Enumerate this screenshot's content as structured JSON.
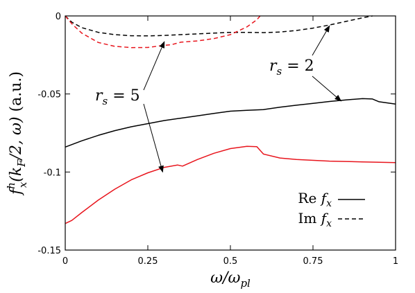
{
  "chart_data": {
    "type": "line",
    "title": "",
    "xlabel": "ω/ω_pl",
    "ylabel": "f_x^h(k_F/2, ω) (a.u.)",
    "xlim": [
      0,
      1
    ],
    "ylim": [
      -0.15,
      0
    ],
    "xticks": [
      {
        "value": 0,
        "label": "0"
      },
      {
        "value": 0.25,
        "label": "0.25"
      },
      {
        "value": 0.5,
        "label": "0.5"
      },
      {
        "value": 0.75,
        "label": "0.75"
      },
      {
        "value": 1,
        "label": "1"
      }
    ],
    "yticks": [
      {
        "value": 0,
        "label": "0"
      },
      {
        "value": -0.05,
        "label": "-0.05"
      },
      {
        "value": -0.1,
        "label": "-0.1"
      },
      {
        "value": -0.15,
        "label": "-0.15"
      }
    ],
    "legend": {
      "position": "bottom-right",
      "entries": [
        {
          "label": "Re f_x",
          "style": "solid"
        },
        {
          "label": "Im f_x",
          "style": "dashed"
        }
      ]
    },
    "series": [
      {
        "rs": 2,
        "part": "Re",
        "color": "#000000",
        "style": "solid",
        "x": [
          0,
          0.05,
          0.1,
          0.15,
          0.2,
          0.25,
          0.3,
          0.35,
          0.4,
          0.45,
          0.5,
          0.55,
          0.6,
          0.65,
          0.7,
          0.75,
          0.8,
          0.85,
          0.9,
          0.93,
          0.95,
          1.0
        ],
        "y": [
          -0.084,
          -0.08,
          -0.0765,
          -0.0735,
          -0.071,
          -0.069,
          -0.067,
          -0.0655,
          -0.064,
          -0.0625,
          -0.061,
          -0.0605,
          -0.06,
          -0.0585,
          -0.0572,
          -0.056,
          -0.0548,
          -0.0538,
          -0.053,
          -0.0532,
          -0.055,
          -0.0565
        ]
      },
      {
        "rs": 2,
        "part": "Im",
        "color": "#000000",
        "style": "dashed",
        "x": [
          0,
          0.02,
          0.05,
          0.1,
          0.15,
          0.2,
          0.25,
          0.3,
          0.35,
          0.4,
          0.45,
          0.5,
          0.55,
          0.6,
          0.65,
          0.7,
          0.75,
          0.8,
          0.85,
          0.9,
          0.93
        ],
        "y": [
          0,
          -0.004,
          -0.0075,
          -0.0105,
          -0.012,
          -0.0127,
          -0.0128,
          -0.0125,
          -0.012,
          -0.0115,
          -0.011,
          -0.0105,
          -0.0105,
          -0.0107,
          -0.0103,
          -0.0093,
          -0.0078,
          -0.0058,
          -0.0035,
          -0.0012,
          0
        ]
      },
      {
        "rs": 5,
        "part": "Re",
        "color": "#e8141c",
        "style": "solid",
        "x": [
          0,
          0.02,
          0.05,
          0.1,
          0.15,
          0.2,
          0.25,
          0.3,
          0.34,
          0.355,
          0.4,
          0.45,
          0.5,
          0.55,
          0.58,
          0.6,
          0.65,
          0.7,
          0.8,
          0.9,
          1.0
        ],
        "y": [
          -0.133,
          -0.131,
          -0.126,
          -0.118,
          -0.111,
          -0.105,
          -0.1005,
          -0.097,
          -0.0955,
          -0.0962,
          -0.092,
          -0.088,
          -0.085,
          -0.0835,
          -0.0838,
          -0.0885,
          -0.091,
          -0.092,
          -0.093,
          -0.0935,
          -0.094
        ]
      },
      {
        "rs": 5,
        "part": "Im",
        "color": "#e8141c",
        "style": "dashed",
        "x": [
          0,
          0.02,
          0.05,
          0.1,
          0.15,
          0.2,
          0.25,
          0.3,
          0.32,
          0.35,
          0.4,
          0.45,
          0.5,
          0.55,
          0.58,
          0.59
        ],
        "y": [
          0,
          -0.005,
          -0.011,
          -0.017,
          -0.0195,
          -0.0203,
          -0.0202,
          -0.0188,
          -0.0185,
          -0.0168,
          -0.016,
          -0.0145,
          -0.012,
          -0.007,
          -0.0025,
          0
        ]
      }
    ],
    "annotations": [
      {
        "text": "r_s = 2",
        "arrows_to": [
          [
            0.8,
            -0.0063
          ],
          [
            0.835,
            -0.0545
          ]
        ]
      },
      {
        "text": "r_s = 5",
        "arrows_to": [
          [
            0.3,
            -0.0165
          ],
          [
            0.295,
            -0.1
          ]
        ]
      }
    ]
  }
}
